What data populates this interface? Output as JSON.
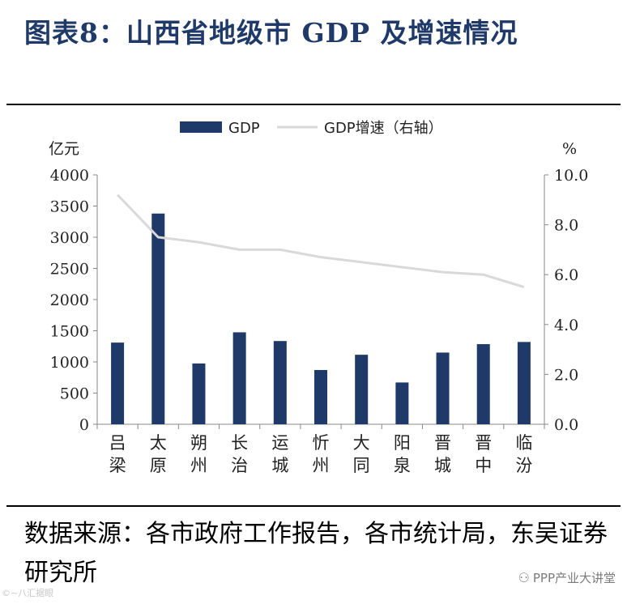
{
  "title": "图表8：山西省地级市 GDP 及增速情况",
  "source_text": "数据来源：各市政府工作报告，各市统计局，东吴证券研究所",
  "watermark_right": "PPP产业大讲堂",
  "watermark_left": "©~八汇据眼",
  "chart_data": {
    "type": "bar+line",
    "categories": [
      "吕梁",
      "太原",
      "朔州",
      "长治",
      "运城",
      "忻州",
      "大同",
      "阳泉",
      "晋城",
      "晋中",
      "临汾"
    ],
    "series": [
      {
        "name": "GDP",
        "type": "bar",
        "axis": "left",
        "color": "#1f3a68",
        "values": [
          1310,
          3380,
          975,
          1475,
          1335,
          870,
          1115,
          670,
          1150,
          1285,
          1320
        ]
      },
      {
        "name": "GDP增速（右轴）",
        "type": "line",
        "axis": "right",
        "color": "#d9d9d9",
        "values": [
          9.2,
          7.5,
          7.3,
          7.0,
          7.0,
          6.7,
          6.5,
          6.3,
          6.1,
          6.0,
          5.5
        ]
      }
    ],
    "left_axis": {
      "unit": "亿元",
      "min": 0,
      "max": 4000,
      "ticks": [
        "0",
        "500",
        "1000",
        "1500",
        "2000",
        "2500",
        "3000",
        "3500",
        "4000"
      ]
    },
    "right_axis": {
      "unit": "%",
      "min": 0,
      "max": 10,
      "ticks": [
        "0.0",
        "2.0",
        "4.0",
        "6.0",
        "8.0",
        "10.0"
      ]
    },
    "legend": {
      "position": "top-center",
      "items": [
        "GDP",
        "GDP增速（右轴）"
      ]
    }
  }
}
